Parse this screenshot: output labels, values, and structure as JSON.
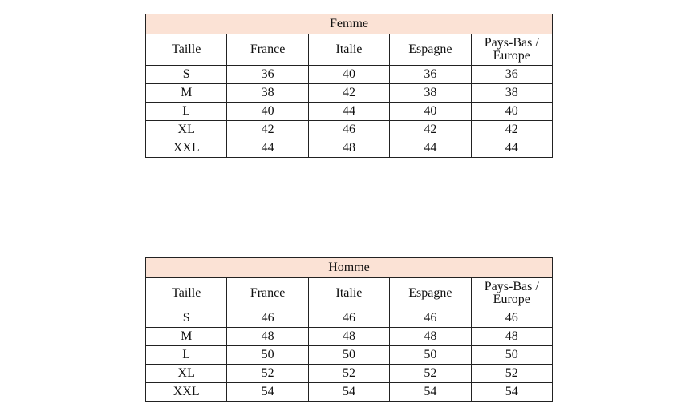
{
  "tables": [
    {
      "title": "Femme",
      "columns": [
        "Taille",
        "France",
        "Italie",
        "Espagne",
        "Pays-Bas / Europe"
      ],
      "rows": [
        [
          "S",
          "36",
          "40",
          "36",
          "36"
        ],
        [
          "M",
          "38",
          "42",
          "38",
          "38"
        ],
        [
          "L",
          "40",
          "44",
          "40",
          "40"
        ],
        [
          "XL",
          "42",
          "46",
          "42",
          "42"
        ],
        [
          "XXL",
          "44",
          "48",
          "44",
          "44"
        ]
      ]
    },
    {
      "title": "Homme",
      "columns": [
        "Taille",
        "France",
        "Italie",
        "Espagne",
        "Pays-Bas / Europe"
      ],
      "rows": [
        [
          "S",
          "46",
          "46",
          "46",
          "46"
        ],
        [
          "M",
          "48",
          "48",
          "48",
          "48"
        ],
        [
          "L",
          "50",
          "50",
          "50",
          "50"
        ],
        [
          "XL",
          "52",
          "52",
          "52",
          "52"
        ],
        [
          "XXL",
          "54",
          "54",
          "54",
          "54"
        ]
      ]
    }
  ],
  "colors": {
    "header_bg": "#fbe2d5",
    "border": "#222222"
  }
}
